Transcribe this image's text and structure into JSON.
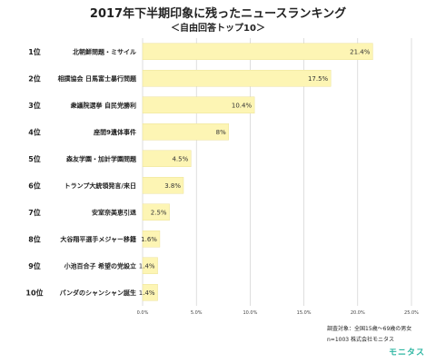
{
  "title": "2017年下半期印象に残ったニュースランキング",
  "subtitle": "＜自由回答トップ10＞",
  "chart_data": {
    "type": "bar",
    "orientation": "horizontal",
    "ranks": [
      "1位",
      "2位",
      "3位",
      "4位",
      "5位",
      "6位",
      "7位",
      "8位",
      "9位",
      "10位"
    ],
    "categories": [
      "北朝鮮問題・ミサイル",
      "相撲協会 日馬富士暴行問題",
      "衆議院選挙 自民党勝利",
      "座間9遺体事件",
      "森友学園・加計学園問題",
      "トランプ大統領発言/来日",
      "安室奈美恵引退",
      "大谷翔平選手メジャー移籍",
      "小池百合子 希望の党設立",
      "パンダのシャンシャン誕生"
    ],
    "values": [
      21.4,
      17.5,
      10.4,
      8,
      4.5,
      3.8,
      2.5,
      1.6,
      1.4,
      1.4
    ],
    "value_labels": [
      "21.4%",
      "17.5%",
      "10.4%",
      "8%",
      "4.5%",
      "3.8%",
      "2.5%",
      "1.6%",
      "1.4%",
      "1.4%"
    ],
    "xlim": [
      0,
      25
    ],
    "ticks": [
      "0.0%",
      "5.0%",
      "10.0%",
      "15.0%",
      "20.0%",
      "25.0%"
    ],
    "grid": true,
    "bar_color": "#fdf5b4",
    "bar_border": "#ece29a",
    "grid_color": "#c8c8c8"
  },
  "footnote": {
    "line1": "調査対象：全国15歳～69歳の男女",
    "line2": "n=1003 株式会社モニタス",
    "brand": "モニタス",
    "brand_color": "#2fb7a3"
  }
}
